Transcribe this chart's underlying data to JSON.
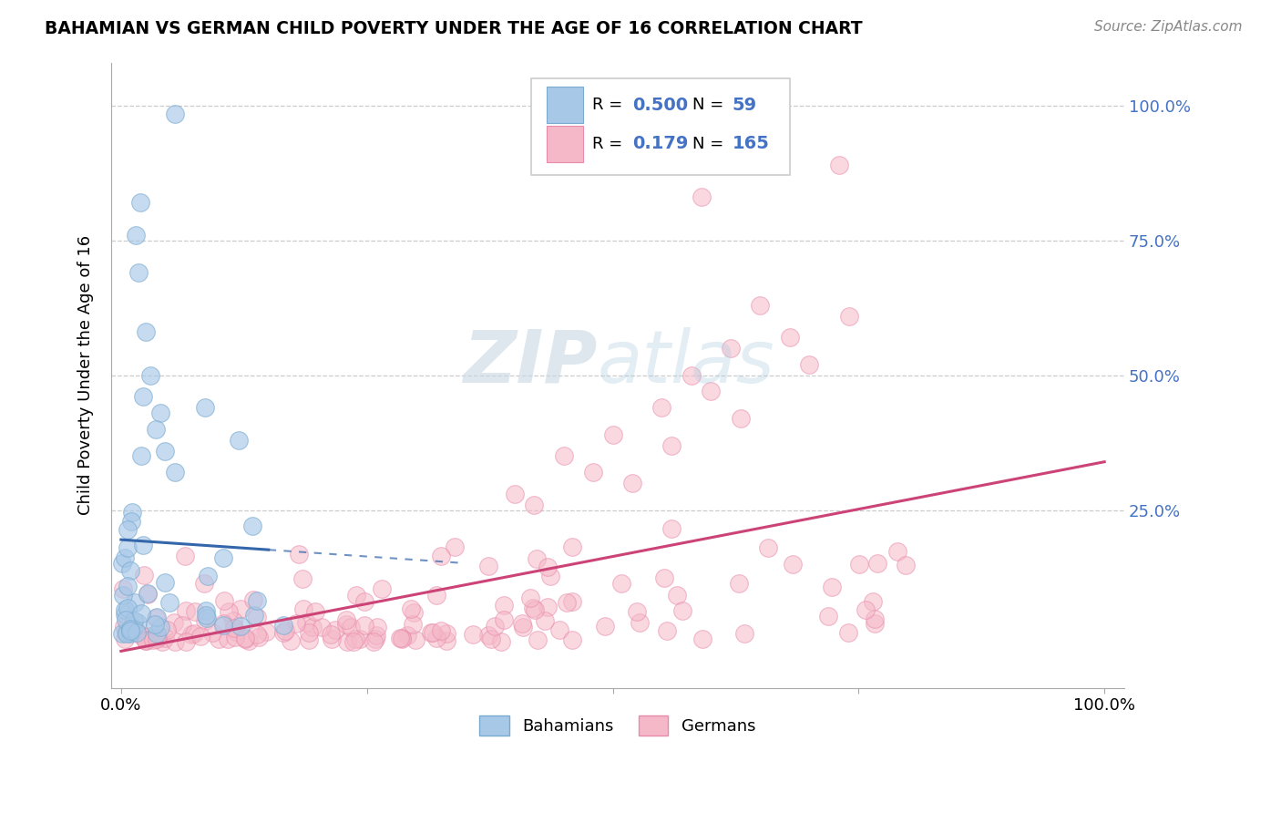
{
  "title": "BAHAMIAN VS GERMAN CHILD POVERTY UNDER THE AGE OF 16 CORRELATION CHART",
  "source": "Source: ZipAtlas.com",
  "ylabel": "Child Poverty Under the Age of 16",
  "legend_label1": "Bahamians",
  "legend_label2": "Germans",
  "R1": 0.5,
  "N1": 59,
  "R2": 0.179,
  "N2": 165,
  "color_blue": "#a8c8e8",
  "color_blue_edge": "#7aabcf",
  "color_pink": "#f5b8c8",
  "color_pink_edge": "#e88aaa",
  "line_color_blue": "#3366aa",
  "line_color_pink": "#cc4477",
  "watermark_color": "#d0dce8",
  "xlim": [
    -0.01,
    1.02
  ],
  "ylim": [
    -0.08,
    1.08
  ]
}
